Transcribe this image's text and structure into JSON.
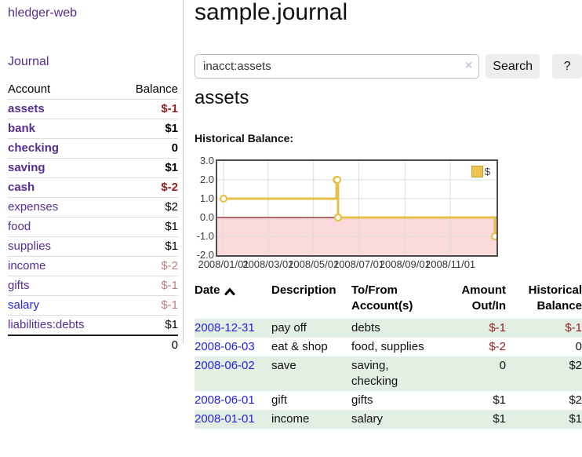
{
  "app": {
    "name": "hledger-web"
  },
  "sidebar": {
    "nav_journal": "Journal",
    "accounts": {
      "header_account": "Account",
      "header_balance": "Balance",
      "rows": [
        {
          "name": "assets",
          "balance": "$-1",
          "indent": 1,
          "bold": true,
          "balance_style": "neg-strong",
          "link_style": "purple"
        },
        {
          "name": "bank",
          "balance": "$1",
          "indent": 2,
          "bold": true,
          "balance_style": "pos",
          "link_style": "purple"
        },
        {
          "name": "checking",
          "balance": "0",
          "indent": 3,
          "bold": true,
          "balance_style": "pos",
          "link_style": "purple"
        },
        {
          "name": "saving",
          "balance": "$1",
          "indent": 3,
          "bold": true,
          "balance_style": "pos",
          "link_style": "purple"
        },
        {
          "name": "cash",
          "balance": "$-2",
          "indent": 2,
          "bold": true,
          "balance_style": "neg-strong",
          "link_style": "purple"
        },
        {
          "name": "expenses",
          "balance": "$2",
          "indent": 1,
          "bold": false,
          "balance_style": "pos",
          "link_style": "purple"
        },
        {
          "name": "food",
          "balance": "$1",
          "indent": 2,
          "bold": false,
          "balance_style": "pos",
          "link_style": "purple"
        },
        {
          "name": "supplies",
          "balance": "$1",
          "indent": 2,
          "bold": false,
          "balance_style": "pos",
          "link_style": "purple"
        },
        {
          "name": "income",
          "balance": "$-2",
          "indent": 1,
          "bold": false,
          "balance_style": "neg-muted",
          "link_style": "purple"
        },
        {
          "name": "gifts",
          "balance": "$-1",
          "indent": 2,
          "bold": false,
          "balance_style": "neg-muted",
          "link_style": "purple"
        },
        {
          "name": "salary",
          "balance": "$-1",
          "indent": 2,
          "bold": false,
          "balance_style": "neg-muted",
          "link_style": "blue"
        },
        {
          "name": "liabilities:debts",
          "balance": "$1",
          "indent": 1,
          "bold": false,
          "balance_style": "pos",
          "link_style": "purple"
        }
      ],
      "total": "0"
    }
  },
  "main": {
    "title": "sample.journal",
    "search": {
      "value": "inacct:assets",
      "clear_icon": "×",
      "search_button": "Search",
      "help_button": "?"
    },
    "heading": "assets",
    "chart_title": "Historical Balance:"
  },
  "chart_data": {
    "type": "line",
    "title": "Historical Balance",
    "step": true,
    "legend": [
      {
        "label": "$",
        "position": "top-right"
      }
    ],
    "ylim": [
      -2,
      3
    ],
    "y_ticks": [
      {
        "value": 3,
        "label": "3.0"
      },
      {
        "value": 2,
        "label": "2.0"
      },
      {
        "value": 1,
        "label": "1.0"
      },
      {
        "value": 0,
        "label": "0.0"
      },
      {
        "value": -1,
        "label": "-1.0"
      },
      {
        "value": -2,
        "label": "-2.0"
      }
    ],
    "x_ticks": [
      {
        "date": "2008-01-01",
        "label": "2008/01/01"
      },
      {
        "date": "2008-03-01",
        "label": "2008/03/01"
      },
      {
        "date": "2008-05-01",
        "label": "2008/05/01"
      },
      {
        "date": "2008-07-01",
        "label": "2008/07/01"
      },
      {
        "date": "2008-09-01",
        "label": "2008/09/01"
      },
      {
        "date": "2008-11-01",
        "label": "2008/11/01"
      }
    ],
    "points": [
      {
        "date": "2008-01-01",
        "value": 1
      },
      {
        "date": "2008-06-01",
        "value": 2
      },
      {
        "date": "2008-06-02",
        "value": 2
      },
      {
        "date": "2008-06-03",
        "value": 0
      },
      {
        "date": "2008-12-31",
        "value": -1
      }
    ]
  },
  "register": {
    "headers": {
      "date": "Date",
      "description": "Description",
      "accounts": "To/From Account(s)",
      "amount": "Amount Out/In",
      "balance": "Historical Balance"
    },
    "rows": [
      {
        "date": "2008-12-31",
        "description": "pay off",
        "accounts": "debts",
        "amount": "$-1",
        "amount_neg": true,
        "balance": "$-1",
        "balance_neg": true,
        "shaded": true
      },
      {
        "date": "2008-06-03",
        "description": "eat & shop",
        "accounts": "food, supplies",
        "amount": "$-2",
        "amount_neg": true,
        "balance": "0",
        "balance_neg": false,
        "shaded": false
      },
      {
        "date": "2008-06-02",
        "description": "save",
        "accounts": "saving,\nchecking",
        "amount": "0",
        "amount_neg": false,
        "balance": "$2",
        "balance_neg": false,
        "shaded": true
      },
      {
        "date": "2008-06-01",
        "description": "gift",
        "accounts": "gifts",
        "amount": "$1",
        "amount_neg": false,
        "balance": "$2",
        "balance_neg": false,
        "shaded": false
      },
      {
        "date": "2008-01-01",
        "description": "income",
        "accounts": "salary",
        "amount": "$1",
        "amount_neg": false,
        "balance": "$1",
        "balance_neg": false,
        "shaded": true
      }
    ]
  },
  "colors": {
    "purple_link": "#552e91",
    "blue_link": "#2323dd",
    "negative_strong": "#941f1f",
    "negative_muted": "#bd7d7d",
    "row_green": "#e2efe2",
    "series": "#e7c04a",
    "legend_swatch": "#eac54f",
    "negative_area": "#fadada",
    "zero_line": "#8f1a1a",
    "grid": "#dcdcdc",
    "chart_border": "#4d4d4d",
    "button_bg": "#ededed"
  }
}
